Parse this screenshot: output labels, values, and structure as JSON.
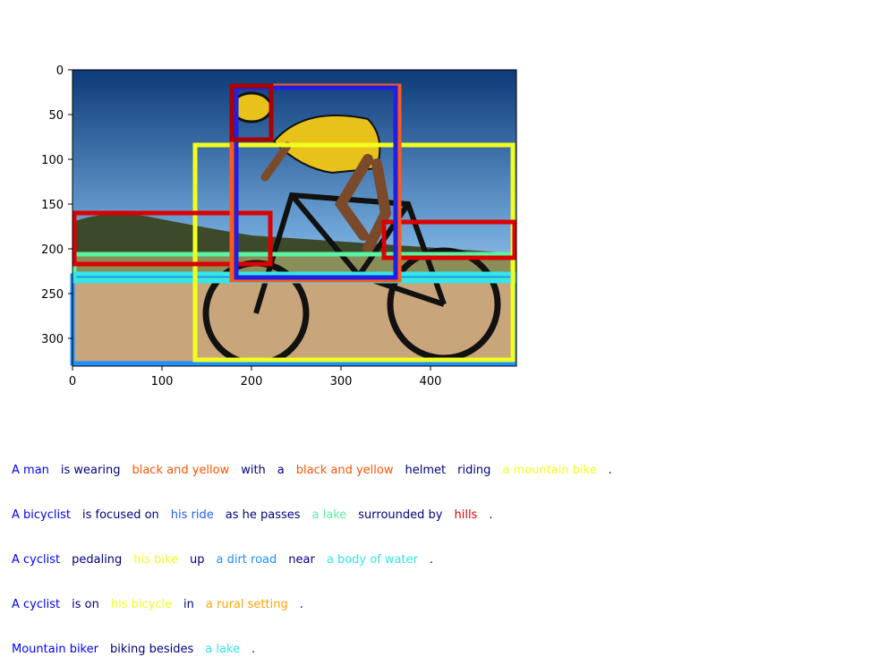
{
  "figure": {
    "image_size": [
      496,
      331
    ],
    "axes": {
      "x_ticks": [
        0,
        100,
        200,
        300,
        400
      ],
      "y_ticks": [
        0,
        50,
        100,
        150,
        200,
        250,
        300
      ]
    },
    "scene": {
      "sky_top": "#0d3a78",
      "sky_mid": "#6fa6d8",
      "sky_bottom": "#e8f2fb",
      "hill": "#3d4a2a",
      "grass": "#8a8f5a",
      "road": "#c9a57b",
      "frame_color": "#111111",
      "jersey_color": "#e8c21a"
    },
    "regions": [
      {
        "name": "a-lake-region",
        "color": "#59f3a2",
        "x0": 2,
        "y0": 206,
        "x1": 492,
        "y1": 235
      },
      {
        "name": "a-dirt-road-region",
        "color": "#1e90ff",
        "x0": 0,
        "y0": 230,
        "x1": 494,
        "y1": 328
      },
      {
        "name": "water-region",
        "color": "#34e6e6",
        "x0": 2,
        "y0": 228,
        "x1": 494,
        "y1": 236
      },
      {
        "name": "his-bike-region",
        "color": "#f2ff1e",
        "x0": 137,
        "y0": 84,
        "x1": 492,
        "y1": 324
      },
      {
        "name": "hills-region-left",
        "color": "#dd0000",
        "x0": 2,
        "y0": 160,
        "x1": 221,
        "y1": 217
      },
      {
        "name": "hills-region-right",
        "color": "#dd0000",
        "x0": 348,
        "y0": 170,
        "x1": 494,
        "y1": 210
      },
      {
        "name": "man-region",
        "color": "#ff5a1a",
        "x0": 178,
        "y0": 18,
        "x1": 365,
        "y1": 235
      },
      {
        "name": "man-region-inner",
        "color": "#2020e0",
        "x0": 183,
        "y0": 20,
        "x1": 361,
        "y1": 232
      },
      {
        "name": "helmet-region",
        "color": "#aa0000",
        "x0": 178,
        "y0": 18,
        "x1": 222,
        "y1": 78
      }
    ]
  },
  "captions": [
    [
      {
        "text": "A man",
        "color": "#0000ff"
      },
      {
        "text": "is wearing",
        "color": "#000080"
      },
      {
        "text": "black and yellow",
        "color": "#ff5500"
      },
      {
        "text": "with",
        "color": "#000080"
      },
      {
        "text": "a",
        "color": "#000080"
      },
      {
        "text": "black and yellow",
        "color": "#ff5500"
      },
      {
        "text": "helmet",
        "color": "#000080"
      },
      {
        "text": "riding",
        "color": "#000080"
      },
      {
        "text": "a mountain bike",
        "color": "#f2ff1e"
      },
      {
        "text": ".",
        "color": "#000080"
      }
    ],
    [
      {
        "text": "A bicyclist",
        "color": "#0000ff"
      },
      {
        "text": "is focused on",
        "color": "#000080"
      },
      {
        "text": "his ride",
        "color": "#1e5aff"
      },
      {
        "text": "as he passes",
        "color": "#000080"
      },
      {
        "text": "a lake",
        "color": "#59f3a2"
      },
      {
        "text": "surrounded by",
        "color": "#000080"
      },
      {
        "text": "hills",
        "color": "#dd0000"
      },
      {
        "text": ".",
        "color": "#000080"
      }
    ],
    [
      {
        "text": "A cyclist",
        "color": "#0000ff"
      },
      {
        "text": "pedaling",
        "color": "#000080"
      },
      {
        "text": "his bike",
        "color": "#f2ff1e"
      },
      {
        "text": "up",
        "color": "#000080"
      },
      {
        "text": "a dirt road",
        "color": "#1e90ff"
      },
      {
        "text": "near",
        "color": "#000080"
      },
      {
        "text": "a body of water",
        "color": "#34e6e6"
      },
      {
        "text": ".",
        "color": "#000080"
      }
    ],
    [
      {
        "text": "A cyclist",
        "color": "#0000ff"
      },
      {
        "text": "is on",
        "color": "#000080"
      },
      {
        "text": "his bicycle",
        "color": "#f2ff1e"
      },
      {
        "text": "in",
        "color": "#000080"
      },
      {
        "text": "a rural setting",
        "color": "#ffa500"
      },
      {
        "text": ".",
        "color": "#000080"
      }
    ],
    [
      {
        "text": "Mountain biker",
        "color": "#0000ff"
      },
      {
        "text": "biking besides",
        "color": "#000080"
      },
      {
        "text": "a lake",
        "color": "#34e6e6"
      },
      {
        "text": ".",
        "color": "#000080"
      }
    ]
  ]
}
